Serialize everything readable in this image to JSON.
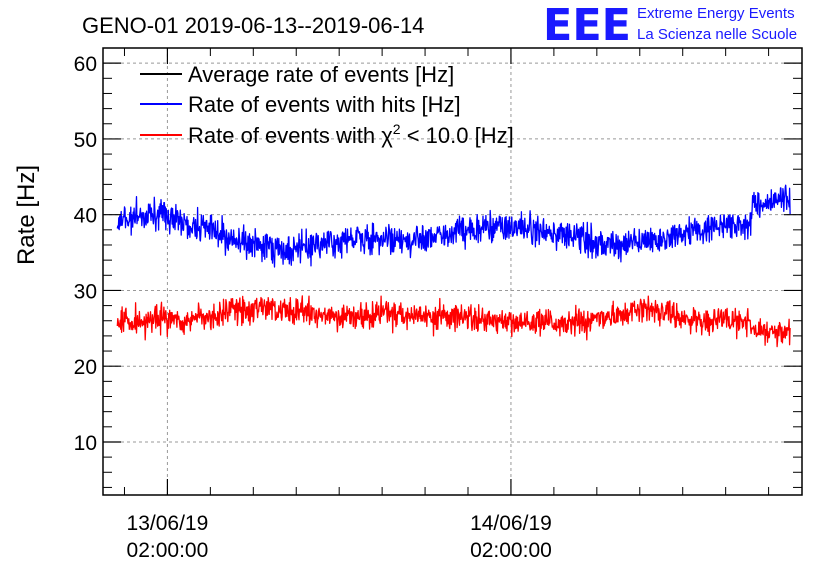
{
  "colors": {
    "black": "#000000",
    "blue": "#0000ff",
    "red": "#ff0000",
    "logo": "#1a1aff",
    "grid": "#999999"
  },
  "header": {
    "title": "GENO-01 2019-06-13--2019-06-14",
    "logo_mark": "EEE",
    "logo_line1": "Extreme Energy Events",
    "logo_line2": "La Scienza nelle Scuole"
  },
  "chart_data": {
    "type": "line",
    "title": "GENO-01 2019-06-13--2019-06-14",
    "ylabel": "Rate [Hz]",
    "xlabel": "",
    "xlim": [
      "2019-06-12 21:30",
      "2019-06-14 22:20"
    ],
    "ylim": [
      3,
      62
    ],
    "grid": true,
    "legend_position": "top-left",
    "y_ticks": [
      10,
      20,
      30,
      40,
      50,
      60
    ],
    "x_ticks": [
      {
        "x": "2019-06-13 02:00:00",
        "date": "13/06/19",
        "time": "02:00:00"
      },
      {
        "x": "2019-06-14 02:00:00",
        "date": "14/06/19",
        "time": "02:00:00"
      }
    ],
    "series": [
      {
        "name": "Average rate of events [Hz]",
        "color": "#000000",
        "x": [],
        "values": []
      },
      {
        "name": "Rate of events with hits [Hz]",
        "color": "#0000ff",
        "noise": 1.0,
        "x": [
          "2019-06-12 22:30",
          "2019-06-13 01:00",
          "2019-06-13 03:00",
          "2019-06-13 05:00",
          "2019-06-13 07:00",
          "2019-06-13 09:00",
          "2019-06-13 11:00",
          "2019-06-13 13:00",
          "2019-06-13 15:00",
          "2019-06-13 17:00",
          "2019-06-13 19:00",
          "2019-06-13 21:00",
          "2019-06-13 23:00",
          "2019-06-14 01:00",
          "2019-06-14 03:00",
          "2019-06-14 05:00",
          "2019-06-14 07:00",
          "2019-06-14 09:00",
          "2019-06-14 11:00",
          "2019-06-14 13:00",
          "2019-06-14 15:00",
          "2019-06-14 17:00",
          "2019-06-14 18:30",
          "2019-06-14 19:00",
          "2019-06-14 21:30"
        ],
        "values": [
          39.2,
          40.2,
          39.2,
          37.8,
          36.5,
          35.6,
          35.4,
          36.2,
          36.8,
          36.9,
          36.8,
          37.5,
          38.0,
          38.3,
          38.3,
          37.6,
          36.6,
          35.9,
          36.2,
          37.0,
          38.0,
          38.6,
          38.6,
          41.2,
          42.0
        ]
      },
      {
        "name": "Rate of events with χ² < 10.0 [Hz]",
        "label_prefix": "Rate of events with ",
        "label_symbol": "χ",
        "label_sup": "2",
        "label_suffix": " < 10.0 [Hz]",
        "color": "#ff0000",
        "noise": 0.9,
        "x": [
          "2019-06-12 22:30",
          "2019-06-13 01:00",
          "2019-06-13 03:00",
          "2019-06-13 05:00",
          "2019-06-13 07:00",
          "2019-06-13 09:00",
          "2019-06-13 11:00",
          "2019-06-13 13:00",
          "2019-06-13 15:00",
          "2019-06-13 17:00",
          "2019-06-13 19:00",
          "2019-06-13 21:00",
          "2019-06-13 23:00",
          "2019-06-14 01:00",
          "2019-06-14 03:00",
          "2019-06-14 05:00",
          "2019-06-14 07:00",
          "2019-06-14 09:00",
          "2019-06-14 11:00",
          "2019-06-14 13:00",
          "2019-06-14 15:00",
          "2019-06-14 17:00",
          "2019-06-14 18:30",
          "2019-06-14 19:00",
          "2019-06-14 21:30"
        ],
        "values": [
          25.8,
          26.2,
          26.0,
          26.6,
          27.2,
          27.5,
          27.2,
          26.8,
          26.7,
          27.0,
          26.8,
          26.5,
          26.3,
          26.0,
          25.8,
          25.7,
          25.8,
          26.6,
          27.4,
          27.0,
          26.0,
          26.0,
          26.0,
          24.8,
          24.2
        ]
      }
    ]
  }
}
